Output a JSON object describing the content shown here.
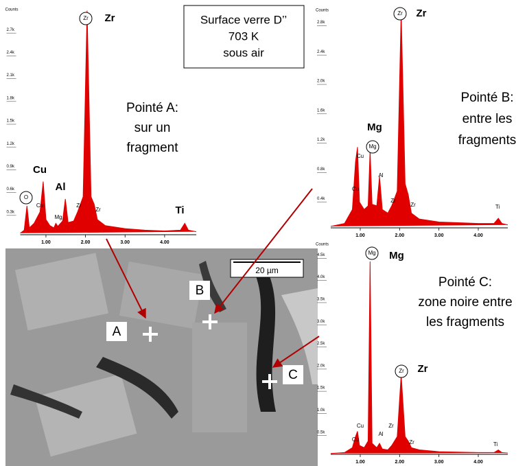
{
  "chart_data": [
    {
      "type": "area",
      "color": "#e00000",
      "y_label": "Counts",
      "x": [
        0.35,
        0.45,
        0.52,
        0.58,
        0.7,
        0.85,
        0.93,
        1.0,
        1.1,
        1.2,
        1.25,
        1.3,
        1.42,
        1.49,
        1.56,
        1.7,
        1.8,
        1.94,
        2.04,
        2.14,
        2.22,
        2.3,
        2.5,
        3,
        3.5,
        4,
        4.4,
        4.51,
        4.6,
        4.8
      ],
      "values": [
        20,
        60,
        380,
        90,
        150,
        300,
        700,
        200,
        120,
        90,
        150,
        110,
        180,
        470,
        160,
        180,
        300,
        500,
        2950,
        500,
        400,
        200,
        120,
        80,
        60,
        50,
        60,
        150,
        60,
        40
      ],
      "xlim": [
        0.35,
        4.8
      ],
      "ylim": [
        0,
        3000
      ],
      "xticks": [
        {
          "value": 1,
          "label": "1.00"
        },
        {
          "value": 2,
          "label": "2.00"
        },
        {
          "value": 3,
          "label": "3.00"
        },
        {
          "value": 4,
          "label": "4.00"
        }
      ],
      "yticks": [
        {
          "value": 300,
          "label": "0.3k"
        },
        {
          "value": 600,
          "label": "0.6k"
        },
        {
          "value": 900,
          "label": "0.9k"
        },
        {
          "value": 1200,
          "label": "1.2k"
        },
        {
          "value": 1500,
          "label": "1.5k"
        },
        {
          "value": 1800,
          "label": "1.8k"
        },
        {
          "value": 2100,
          "label": "2.1k"
        },
        {
          "value": 2400,
          "label": "2.4k"
        },
        {
          "value": 2700,
          "label": "2.7k"
        }
      ],
      "peak_labels": [
        "Zr",
        "Zr",
        "Cu",
        "Al",
        "Ti",
        "O",
        "Cu",
        "Mg",
        "Zr",
        "Zr"
      ],
      "note": [
        "Pointé A:",
        "sur un",
        "fragment"
      ]
    },
    {
      "type": "area",
      "color": "#e00000",
      "y_label": "Counts",
      "x": [
        0.25,
        0.6,
        0.8,
        0.88,
        0.93,
        0.98,
        1.1,
        1.2,
        1.25,
        1.3,
        1.42,
        1.49,
        1.56,
        1.7,
        1.8,
        1.94,
        2.04,
        2.14,
        2.22,
        2.3,
        2.5,
        3,
        3.5,
        4,
        4.4,
        4.51,
        4.6,
        4.75
      ],
      "values": [
        20,
        60,
        250,
        900,
        1100,
        350,
        250,
        300,
        1050,
        320,
        300,
        700,
        250,
        200,
        300,
        500,
        2960,
        600,
        450,
        200,
        120,
        80,
        70,
        60,
        60,
        130,
        60,
        40
      ],
      "xlim": [
        0.25,
        4.75
      ],
      "ylim": [
        0,
        3000
      ],
      "xticks": [
        {
          "value": 1,
          "label": "1.00"
        },
        {
          "value": 2,
          "label": "2.00"
        },
        {
          "value": 3,
          "label": "3.00"
        },
        {
          "value": 4,
          "label": "4.00"
        }
      ],
      "yticks": [
        {
          "value": 400,
          "label": "0.4k"
        },
        {
          "value": 800,
          "label": "0.8k"
        },
        {
          "value": 1200,
          "label": "1.2k"
        },
        {
          "value": 1600,
          "label": "1.6k"
        },
        {
          "value": 2000,
          "label": "2.0k"
        },
        {
          "value": 2400,
          "label": "2.4k"
        },
        {
          "value": 2800,
          "label": "2.8k"
        }
      ],
      "peak_labels": [
        "Zr",
        "Zr",
        "Mg",
        "Mg",
        "Cu",
        "Cu",
        "Al",
        "Zr",
        "Zr",
        "Ti"
      ],
      "note": [
        "Pointé B:",
        "entre les",
        "fragments"
      ]
    },
    {
      "type": "area",
      "color": "#e00000",
      "y_label": "Counts",
      "x": [
        0.25,
        0.6,
        0.8,
        0.88,
        0.93,
        0.98,
        1.1,
        1.2,
        1.25,
        1.3,
        1.42,
        1.49,
        1.56,
        1.7,
        1.8,
        1.94,
        2.04,
        2.14,
        2.22,
        2.3,
        2.5,
        3,
        3.5,
        4,
        4.4,
        4.51,
        4.6,
        4.75
      ],
      "values": [
        20,
        40,
        150,
        400,
        520,
        200,
        150,
        300,
        4350,
        250,
        150,
        250,
        120,
        100,
        200,
        400,
        1800,
        400,
        300,
        150,
        100,
        60,
        50,
        40,
        40,
        100,
        40,
        30
      ],
      "xlim": [
        0.25,
        4.75
      ],
      "ylim": [
        0,
        4800
      ],
      "xticks": [
        {
          "value": 1,
          "label": "1.00"
        },
        {
          "value": 2,
          "label": "2.00"
        },
        {
          "value": 3,
          "label": "3.00"
        },
        {
          "value": 4,
          "label": "4.00"
        }
      ],
      "yticks": [
        {
          "value": 500,
          "label": "0.5k"
        },
        {
          "value": 1000,
          "label": "1.0k"
        },
        {
          "value": 1500,
          "label": "1.5k"
        },
        {
          "value": 2000,
          "label": "2.0k"
        },
        {
          "value": 2500,
          "label": "2.5k"
        },
        {
          "value": 3000,
          "label": "3.0k"
        },
        {
          "value": 3500,
          "label": "3.5k"
        },
        {
          "value": 4000,
          "label": "4.0k"
        },
        {
          "value": 4500,
          "label": "4.5k"
        }
      ],
      "peak_labels": [
        "Mg",
        "Mg",
        "Zr",
        "Zr",
        "Cu",
        "Cu",
        "Al",
        "Zr",
        "Zr",
        "Ti"
      ],
      "note": [
        "Pointé  C:",
        "zone noire entre",
        "les fragments"
      ]
    }
  ],
  "title_box": [
    "Surface verre D’’",
    "703 K",
    "sous air"
  ],
  "sem_image": {
    "scale_bar": "20 µm",
    "points": [
      "A",
      "B",
      "C"
    ]
  }
}
